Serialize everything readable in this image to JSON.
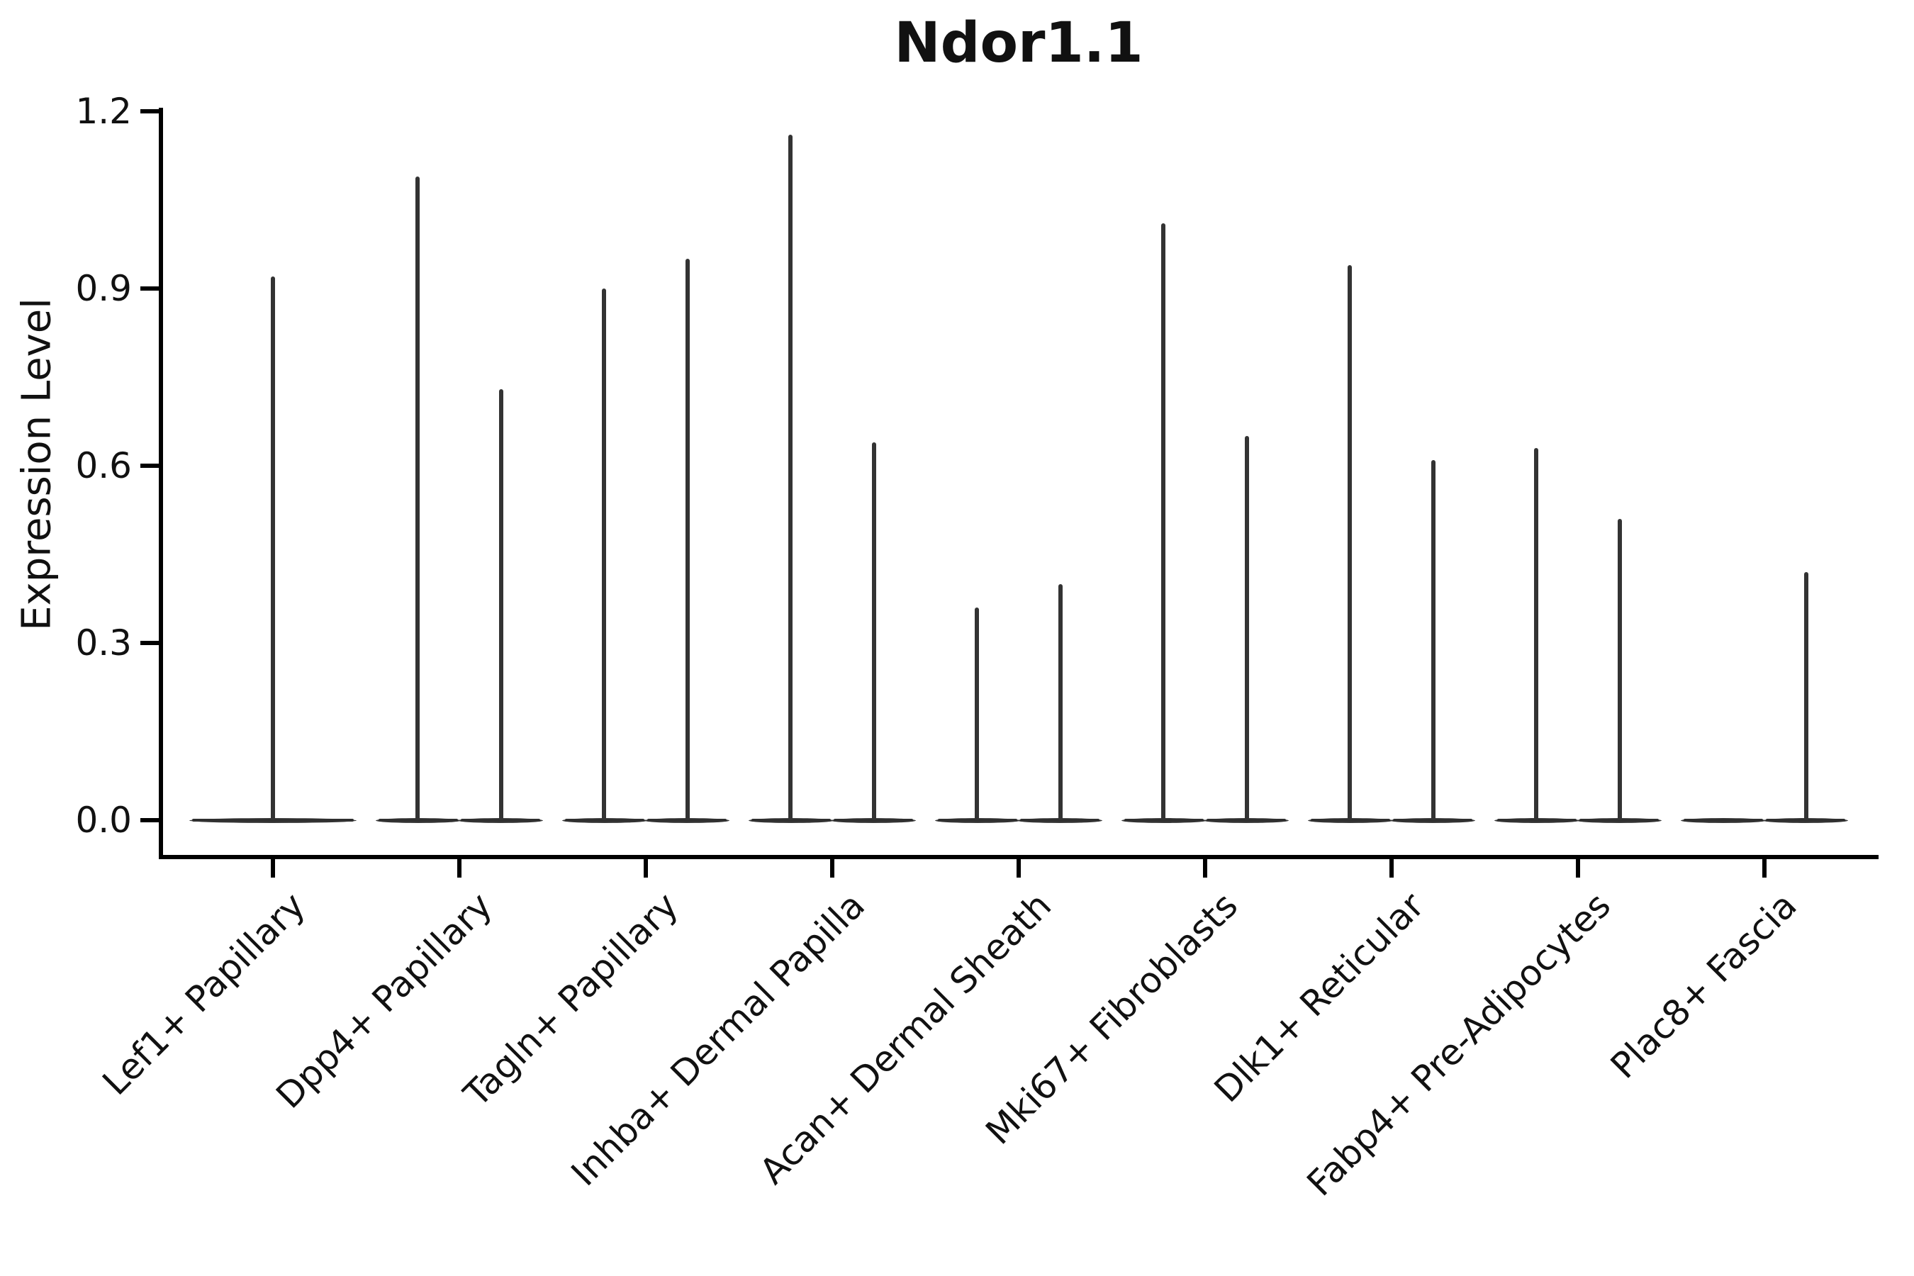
{
  "title": "Ndor1.1",
  "chart_data": {
    "type": "violin",
    "title": "Ndor1.1",
    "xlabel": "",
    "ylabel": "Expression Level",
    "ylim": [
      0,
      1.2
    ],
    "yticks": [
      "0.0",
      "0.3",
      "0.6",
      "0.9",
      "1.2"
    ],
    "grid": false,
    "legend": "none",
    "violin_color": "#333333",
    "axis_color": "#000000",
    "note": "All violins are flat (near-zero width) at expression 0 with a single narrow density spike rising to the listed peak value. Categories hold two side-by-side (dodged) violins except Lef1+ Papillary (one full-width violin); the left violin of Plac8+ Fascia is entirely flat with no spike (peak 0).",
    "categories": [
      {
        "label": "Lef1+ Papillary",
        "violins": [
          {
            "slot": "full",
            "peak": 0.92
          }
        ]
      },
      {
        "label": "Dpp4+ Papillary",
        "violins": [
          {
            "slot": "left",
            "peak": 1.09
          },
          {
            "slot": "right",
            "peak": 0.73
          }
        ]
      },
      {
        "label": "Tagln+ Papillary",
        "violins": [
          {
            "slot": "left",
            "peak": 0.9
          },
          {
            "slot": "right",
            "peak": 0.95
          }
        ]
      },
      {
        "label": "Inhba+ Dermal Papilla",
        "violins": [
          {
            "slot": "left",
            "peak": 1.16
          },
          {
            "slot": "right",
            "peak": 0.64
          }
        ]
      },
      {
        "label": "Acan+ Dermal Sheath",
        "violins": [
          {
            "slot": "left",
            "peak": 0.36
          },
          {
            "slot": "right",
            "peak": 0.4
          }
        ]
      },
      {
        "label": "Mki67+ Fibroblasts",
        "violins": [
          {
            "slot": "left",
            "peak": 1.01
          },
          {
            "slot": "right",
            "peak": 0.65
          }
        ]
      },
      {
        "label": "Dlk1+ Reticular",
        "violins": [
          {
            "slot": "left",
            "peak": 0.94
          },
          {
            "slot": "right",
            "peak": 0.61
          }
        ]
      },
      {
        "label": "Fabp4+ Pre-Adipocytes",
        "violins": [
          {
            "slot": "left",
            "peak": 0.63
          },
          {
            "slot": "right",
            "peak": 0.51
          }
        ]
      },
      {
        "label": "Plac8+ Fascia",
        "violins": [
          {
            "slot": "left",
            "peak": 0.0
          },
          {
            "slot": "right",
            "peak": 0.42
          }
        ]
      }
    ]
  }
}
